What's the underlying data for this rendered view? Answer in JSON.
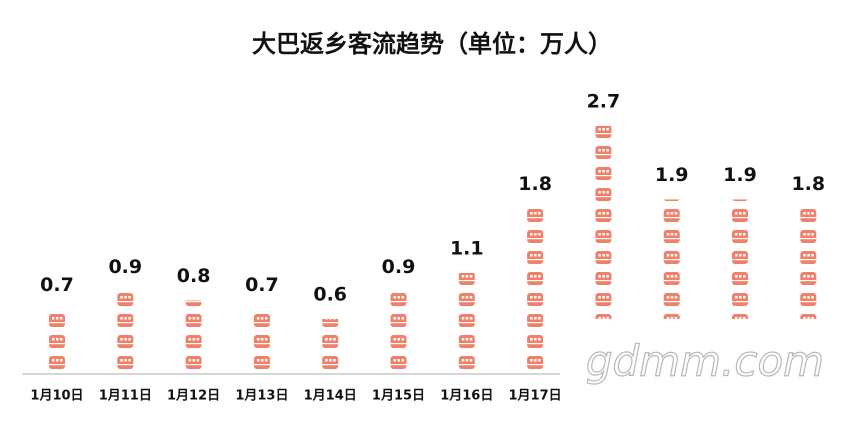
{
  "chart_data": {
    "type": "pictograph",
    "title": "大巴返乡客流趋势（单位：万人）",
    "categories": [
      "1月10日",
      "1月11日",
      "1月12日",
      "1月13日",
      "1月14日",
      "1月15日",
      "1月16日",
      "1月17日",
      null,
      null,
      null,
      null
    ],
    "values": [
      0.7,
      0.9,
      0.8,
      0.7,
      0.6,
      0.9,
      1.1,
      1.8,
      2.7,
      1.9,
      1.9,
      1.8
    ],
    "color": "#f0806a"
  },
  "watermark": "gdmm.com"
}
